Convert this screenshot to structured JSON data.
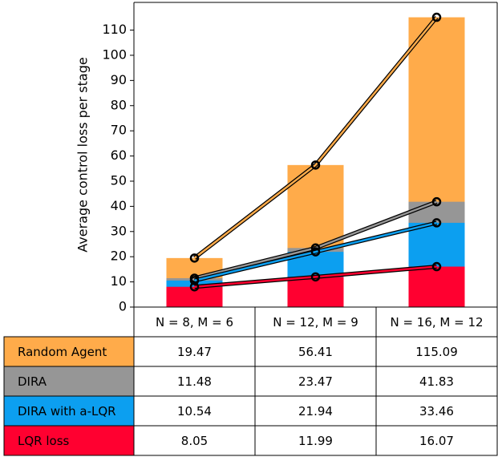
{
  "chart_data": {
    "type": "bar",
    "ylabel": "Average control loss per stage",
    "categories": [
      "N = 8, M = 6",
      "N = 12, M = 9",
      "N = 16, M = 12"
    ],
    "series": [
      {
        "name": "Random Agent",
        "color": "#ffab4a",
        "values": [
          19.47,
          56.41,
          115.09
        ]
      },
      {
        "name": "DIRA",
        "color": "#969696",
        "values": [
          11.48,
          23.47,
          41.83
        ]
      },
      {
        "name": "DIRA with a-LQR",
        "color": "#0c9ff0",
        "values": [
          10.54,
          21.94,
          33.46
        ]
      },
      {
        "name": "LQR loss",
        "color": "#ff0030",
        "values": [
          8.05,
          11.99,
          16.07
        ]
      }
    ],
    "ylim": [
      0,
      121
    ],
    "yticks": [
      0,
      10,
      20,
      30,
      40,
      50,
      60,
      70,
      80,
      90,
      100,
      110
    ]
  }
}
